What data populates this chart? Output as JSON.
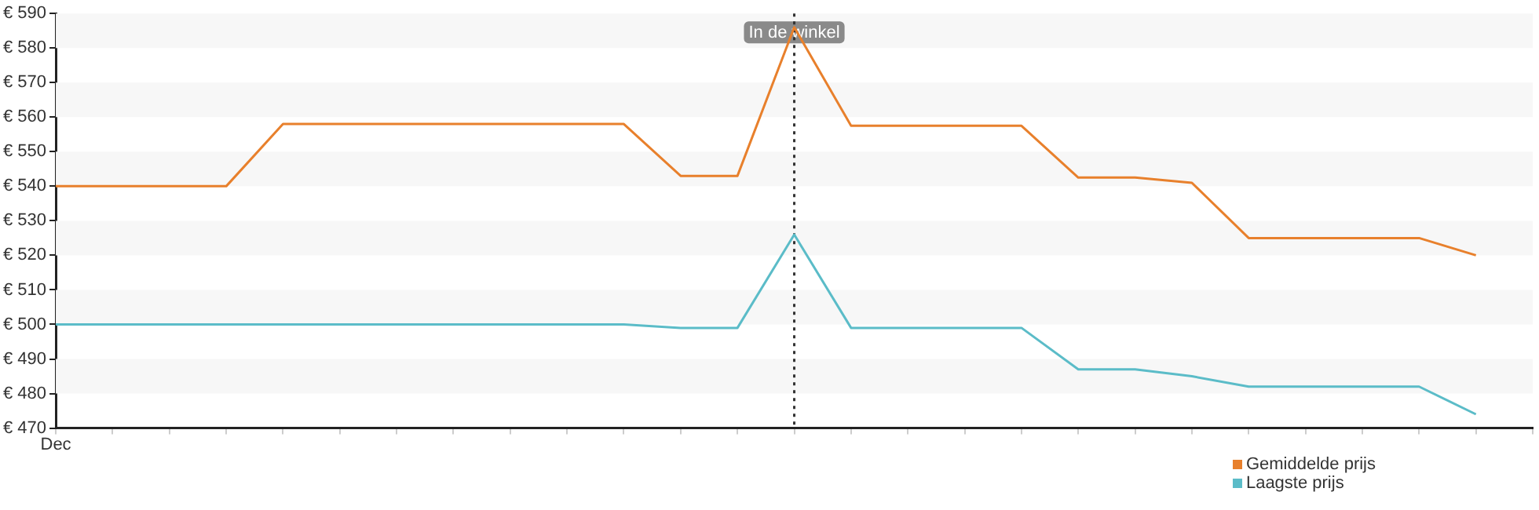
{
  "chart_data": {
    "type": "line",
    "categories": [
      "Dec",
      null,
      null,
      null,
      null,
      null,
      null,
      null,
      null,
      null,
      null,
      null,
      null,
      null,
      null,
      null,
      null,
      null,
      null,
      null,
      null,
      null,
      null,
      null,
      null,
      null,
      null
    ],
    "series": [
      {
        "name": "Gemiddelde prijs",
        "color": "#e8802c",
        "values": [
          540,
          540,
          540,
          540,
          558,
          558,
          558,
          558,
          558,
          558,
          558,
          543,
          543,
          586,
          557.5,
          557.5,
          557.5,
          557.5,
          542.5,
          542.5,
          541,
          525,
          525,
          525,
          525,
          520,
          null
        ]
      },
      {
        "name": "Laagste prijs",
        "color": "#5bbcc8",
        "values": [
          500,
          500,
          500,
          500,
          500,
          500,
          500,
          500,
          500,
          500,
          500,
          499,
          499,
          526,
          499,
          499,
          499,
          499,
          487,
          487,
          485,
          482,
          482,
          482,
          482,
          474,
          null
        ]
      }
    ],
    "ylim": [
      470,
      590
    ],
    "yticks": [
      {
        "value": 470,
        "label": "€ 470"
      },
      {
        "value": 480,
        "label": "€ 480"
      },
      {
        "value": 490,
        "label": "€ 490"
      },
      {
        "value": 500,
        "label": "€ 500"
      },
      {
        "value": 510,
        "label": "€ 510"
      },
      {
        "value": 520,
        "label": "€ 520"
      },
      {
        "value": 530,
        "label": "€ 530"
      },
      {
        "value": 540,
        "label": "€ 540"
      },
      {
        "value": 550,
        "label": "€ 550"
      },
      {
        "value": 560,
        "label": "€ 560"
      },
      {
        "value": 570,
        "label": "€ 570"
      },
      {
        "value": 580,
        "label": "€ 580"
      },
      {
        "value": 590,
        "label": "€ 590"
      }
    ],
    "annotations": [
      "In de winkel"
    ],
    "legend": "bottom right",
    "marker": "none",
    "line_style": "solid"
  }
}
